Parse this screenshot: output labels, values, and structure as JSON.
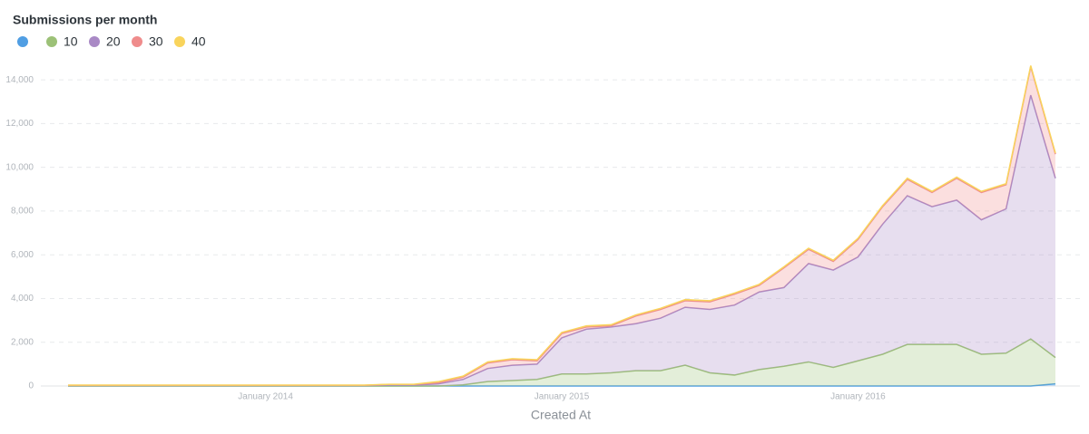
{
  "chart_data": {
    "type": "stacked_area",
    "title": "Submissions per month",
    "x_label": "Created At",
    "categories": [
      null,
      null,
      null,
      null,
      null,
      null,
      null,
      null,
      "January 2014",
      null,
      null,
      null,
      null,
      null,
      null,
      null,
      null,
      null,
      null,
      null,
      "January 2015",
      null,
      null,
      null,
      null,
      null,
      null,
      null,
      null,
      null,
      null,
      null,
      "January 2016",
      null,
      null,
      null,
      null,
      null,
      null,
      null,
      null
    ],
    "series": [
      {
        "name": null,
        "color": "#509ee3",
        "values": [
          0,
          0,
          0,
          0,
          0,
          0,
          0,
          0,
          0,
          0,
          0,
          0,
          0,
          0,
          0,
          0,
          0,
          0,
          0,
          0,
          0,
          0,
          0,
          0,
          0,
          0,
          0,
          0,
          0,
          0,
          0,
          0,
          0,
          0,
          0,
          0,
          0,
          0,
          0,
          0,
          100
        ]
      },
      {
        "name": "10",
        "color": "#9cc177",
        "values": [
          0,
          0,
          0,
          0,
          0,
          0,
          0,
          0,
          0,
          0,
          0,
          0,
          0,
          0,
          0,
          0,
          50,
          200,
          250,
          300,
          550,
          550,
          600,
          700,
          700,
          950,
          600,
          500,
          750,
          900,
          1100,
          850,
          1150,
          1450,
          1900,
          1900,
          1900,
          1450,
          1500,
          2150,
          1200
        ]
      },
      {
        "name": "20",
        "color": "#a989c5",
        "values": [
          20,
          20,
          20,
          20,
          20,
          20,
          20,
          20,
          20,
          20,
          20,
          20,
          20,
          40,
          40,
          100,
          250,
          600,
          700,
          700,
          1650,
          2050,
          2100,
          2150,
          2400,
          2650,
          2900,
          3200,
          3550,
          3600,
          4500,
          4450,
          4750,
          5950,
          6800,
          6300,
          6600,
          6150,
          6600,
          11150,
          8200
        ]
      },
      {
        "name": "30",
        "color": "#ef8c8c",
        "values": [
          10,
          10,
          10,
          10,
          10,
          10,
          10,
          10,
          10,
          10,
          10,
          10,
          10,
          30,
          30,
          50,
          100,
          250,
          250,
          150,
          200,
          100,
          50,
          350,
          400,
          300,
          350,
          500,
          300,
          900,
          650,
          400,
          800,
          800,
          750,
          650,
          1000,
          1250,
          1100,
          1300,
          1100
        ]
      },
      {
        "name": "40",
        "color": "#f9d45c",
        "values": [
          10,
          10,
          10,
          10,
          10,
          10,
          10,
          10,
          10,
          10,
          10,
          10,
          10,
          10,
          10,
          50,
          50,
          50,
          50,
          50,
          50,
          50,
          50,
          50,
          50,
          50,
          50,
          50,
          50,
          50,
          50,
          50,
          50,
          50,
          50,
          50,
          50,
          50,
          50,
          50,
          50
        ]
      }
    ],
    "ylim": [
      0,
      15000
    ],
    "yticks": [
      0,
      {
        "value": 2000,
        "label": "2,000"
      },
      {
        "value": 4000,
        "label": "4,000"
      },
      {
        "value": 6000,
        "label": "6,000"
      },
      {
        "value": 8000,
        "label": "8,000"
      },
      {
        "value": 10000,
        "label": "10,000"
      },
      {
        "value": 12000,
        "label": "12,000"
      },
      {
        "value": 14000,
        "label": "14,000"
      }
    ],
    "grid": true
  }
}
